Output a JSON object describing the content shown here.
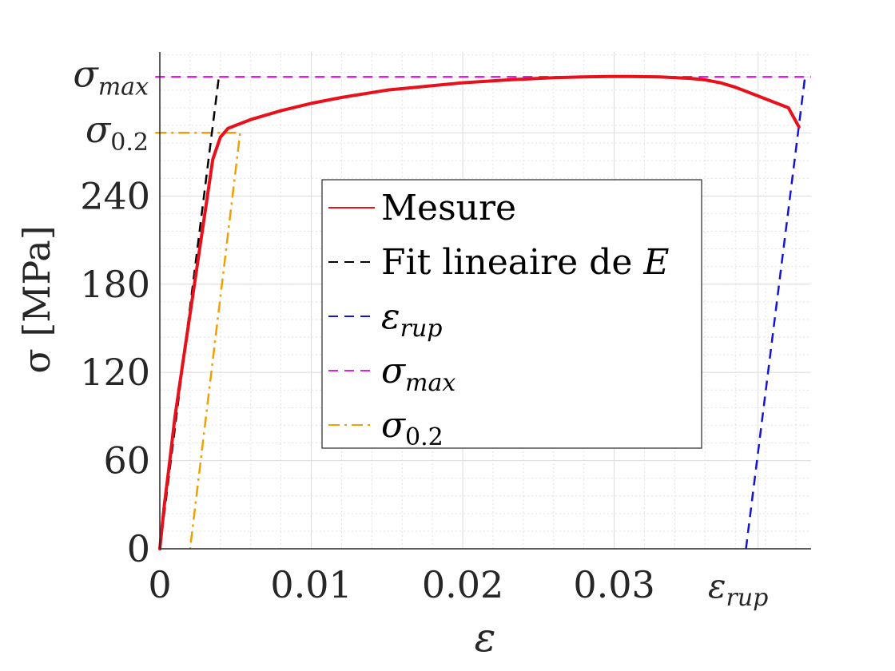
{
  "chart_data": {
    "type": "line",
    "xlabel": "ε",
    "ylabel": "σ [MPa]",
    "xlim": [
      0,
      0.043
    ],
    "ylim": [
      0,
      338
    ],
    "xticks": [
      {
        "value": 0,
        "label": "0"
      },
      {
        "value": 0.01,
        "label": "0.01"
      },
      {
        "value": 0.02,
        "label": "0.02"
      },
      {
        "value": 0.03,
        "label": "0.03"
      }
    ],
    "xtick_special": {
      "value": 0.0395,
      "label": "ε",
      "sub": "rup"
    },
    "yticks": [
      {
        "value": 0,
        "label": "0"
      },
      {
        "value": 60,
        "label": "60"
      },
      {
        "value": 120,
        "label": "120"
      },
      {
        "value": 180,
        "label": "180"
      },
      {
        "value": 240,
        "label": "240"
      }
    ],
    "ytick_special": [
      {
        "value": 283,
        "label": "σ",
        "sub": "0.2"
      },
      {
        "value": 321,
        "label": "σ",
        "sub": "max"
      }
    ],
    "grid": true,
    "minor_grid": true,
    "legend_position": "center",
    "series": [
      {
        "name": "Mesure",
        "color": "#e8101a",
        "style": "solid",
        "x": [
          0,
          0.0003,
          0.0006,
          0.001,
          0.0015,
          0.002,
          0.0025,
          0.003,
          0.0035,
          0.004,
          0.0045,
          0.005,
          0.006,
          0.008,
          0.01,
          0.012,
          0.015,
          0.018,
          0.02,
          0.023,
          0.026,
          0.028,
          0.03,
          0.031,
          0.033,
          0.035,
          0.036,
          0.037,
          0.038,
          0.039,
          0.0415,
          0.0422
        ],
        "y": [
          0,
          30,
          55,
          90,
          125,
          160,
          195,
          230,
          265,
          280,
          286,
          288,
          292,
          298,
          303,
          307,
          312,
          315,
          317,
          319,
          320.5,
          321,
          321.3,
          321.3,
          321,
          320,
          319,
          317,
          314,
          310,
          300,
          287
        ]
      },
      {
        "name": "Fit lineaire de E",
        "color": "#000000",
        "style": "dashed",
        "x": [
          0,
          0.0039
        ],
        "y": [
          0,
          321
        ]
      },
      {
        "name": "ε_rup",
        "color": "#1414d2",
        "style": "dashed",
        "x": [
          0.0387,
          0.0426
        ],
        "y": [
          0,
          321
        ]
      },
      {
        "name": "σ_max",
        "color": "#e020e0",
        "style": "dashed",
        "x": [
          -0.0003,
          0.043
        ],
        "y": [
          321,
          321
        ]
      },
      {
        "name": "σ_0.2",
        "color": "#f0a000",
        "style": "dashdot",
        "x": [
          -0.0003,
          0.0053,
          0.0053,
          0.002
        ],
        "y": [
          283,
          283,
          283,
          0
        ]
      }
    ],
    "legend": [
      {
        "label": "Mesure",
        "color": "#e8101a",
        "dash": ""
      },
      {
        "label": "Fit lineaire de ",
        "math": "E",
        "color": "#000000",
        "dash": "12,8"
      },
      {
        "label": "",
        "math": "ε",
        "sub": "rup",
        "color": "#1414d2",
        "dash": "12,8"
      },
      {
        "label": "",
        "math": "σ",
        "sub": "max",
        "color": "#e020e0",
        "dash": "12,8"
      },
      {
        "label": "",
        "math": "σ",
        "sub": "0.2",
        "sub_upright": true,
        "color": "#f0a000",
        "dash": "14,6,3,6"
      }
    ]
  }
}
